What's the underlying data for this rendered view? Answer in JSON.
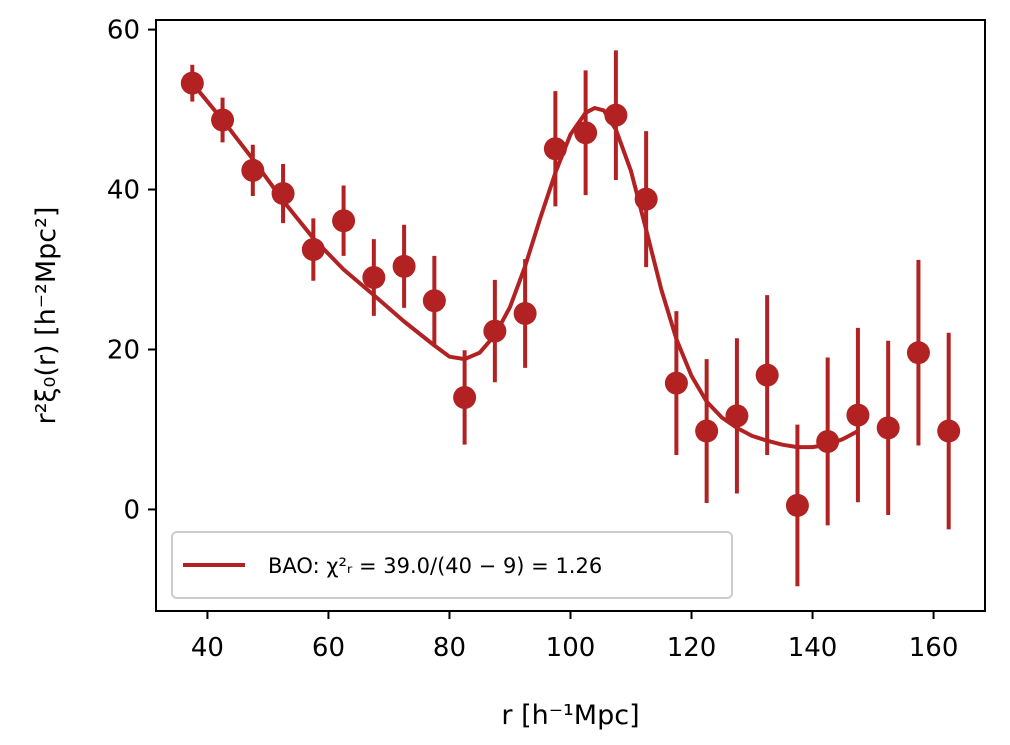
{
  "chart_data": {
    "type": "scatter",
    "xlabel": "r [h⁻¹Mpc]",
    "ylabel": "r²ξ₀(r) [h⁻²Mpc²]",
    "xlim": [
      31.5,
      168.5
    ],
    "ylim": [
      -12.7,
      61.2
    ],
    "xticks": [
      40,
      60,
      80,
      100,
      120,
      140,
      160
    ],
    "yticks": [
      0,
      20,
      40,
      60
    ],
    "grid": false,
    "legend_position": "lower-left",
    "color": "#b22222",
    "series": [
      {
        "name": "data",
        "kind": "errorbar",
        "points": [
          {
            "x": 37.5,
            "y": 53.3,
            "err": 2.3
          },
          {
            "x": 42.5,
            "y": 48.7,
            "err": 2.8
          },
          {
            "x": 47.5,
            "y": 42.4,
            "err": 3.2
          },
          {
            "x": 52.5,
            "y": 39.5,
            "err": 3.7
          },
          {
            "x": 57.5,
            "y": 32.5,
            "err": 3.9
          },
          {
            "x": 62.5,
            "y": 36.1,
            "err": 4.4
          },
          {
            "x": 67.5,
            "y": 29.0,
            "err": 4.8
          },
          {
            "x": 72.5,
            "y": 30.4,
            "err": 5.2
          },
          {
            "x": 77.5,
            "y": 26.1,
            "err": 5.6
          },
          {
            "x": 82.5,
            "y": 14.0,
            "err": 5.9
          },
          {
            "x": 87.5,
            "y": 22.3,
            "err": 6.4
          },
          {
            "x": 92.5,
            "y": 24.5,
            "err": 6.8
          },
          {
            "x": 97.5,
            "y": 45.1,
            "err": 7.2
          },
          {
            "x": 102.5,
            "y": 47.1,
            "err": 7.8
          },
          {
            "x": 107.5,
            "y": 49.3,
            "err": 8.1
          },
          {
            "x": 112.5,
            "y": 38.8,
            "err": 8.5
          },
          {
            "x": 117.5,
            "y": 15.8,
            "err": 9.0
          },
          {
            "x": 122.5,
            "y": 9.8,
            "err": 9.0
          },
          {
            "x": 127.5,
            "y": 11.7,
            "err": 9.7
          },
          {
            "x": 132.5,
            "y": 16.8,
            "err": 10.0
          },
          {
            "x": 137.5,
            "y": 0.5,
            "err": 10.1
          },
          {
            "x": 142.5,
            "y": 8.5,
            "err": 10.5
          },
          {
            "x": 147.5,
            "y": 11.8,
            "err": 10.9
          },
          {
            "x": 152.5,
            "y": 10.2,
            "err": 10.9
          },
          {
            "x": 157.5,
            "y": 19.6,
            "err": 11.6
          },
          {
            "x": 162.5,
            "y": 9.8,
            "err": 12.3
          }
        ]
      },
      {
        "name": "BAO: χ²ᵣ = 39.0/(40 − 9) = 1.26",
        "kind": "line",
        "points": [
          {
            "x": 37.5,
            "y": 53.3
          },
          {
            "x": 42.5,
            "y": 48.7
          },
          {
            "x": 47.5,
            "y": 43.8
          },
          {
            "x": 52.5,
            "y": 38.6
          },
          {
            "x": 57.5,
            "y": 33.9
          },
          {
            "x": 62.5,
            "y": 30.0
          },
          {
            "x": 67.5,
            "y": 26.8
          },
          {
            "x": 72.5,
            "y": 23.5
          },
          {
            "x": 77.5,
            "y": 20.5
          },
          {
            "x": 80.0,
            "y": 19.1
          },
          {
            "x": 82.5,
            "y": 18.8
          },
          {
            "x": 85.0,
            "y": 19.6
          },
          {
            "x": 87.5,
            "y": 21.8
          },
          {
            "x": 90.0,
            "y": 25.3
          },
          {
            "x": 92.5,
            "y": 30.4
          },
          {
            "x": 95.0,
            "y": 36.4
          },
          {
            "x": 97.5,
            "y": 42.1
          },
          {
            "x": 100.0,
            "y": 46.9
          },
          {
            "x": 102.5,
            "y": 49.6
          },
          {
            "x": 104.0,
            "y": 50.2
          },
          {
            "x": 105.5,
            "y": 49.9
          },
          {
            "x": 107.5,
            "y": 47.5
          },
          {
            "x": 110.0,
            "y": 42.3
          },
          {
            "x": 112.5,
            "y": 35.0
          },
          {
            "x": 115.0,
            "y": 27.5
          },
          {
            "x": 117.5,
            "y": 21.3
          },
          {
            "x": 120.0,
            "y": 16.7
          },
          {
            "x": 122.5,
            "y": 13.5
          },
          {
            "x": 125.0,
            "y": 11.5
          },
          {
            "x": 127.5,
            "y": 10.2
          },
          {
            "x": 130.0,
            "y": 9.2
          },
          {
            "x": 132.5,
            "y": 8.6
          },
          {
            "x": 135.0,
            "y": 8.1
          },
          {
            "x": 137.5,
            "y": 7.8
          },
          {
            "x": 140.0,
            "y": 7.8
          },
          {
            "x": 142.5,
            "y": 8.1
          },
          {
            "x": 145.0,
            "y": 8.8
          },
          {
            "x": 147.5,
            "y": 9.8
          }
        ]
      }
    ]
  }
}
